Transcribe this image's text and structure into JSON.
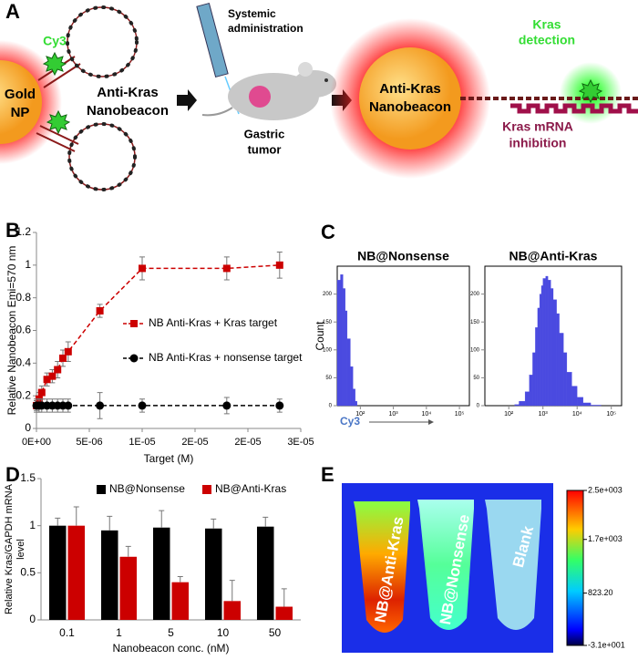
{
  "panel_labels": [
    "A",
    "B",
    "C",
    "D",
    "E"
  ],
  "panel_a": {
    "np_core": [
      "Gold",
      "NP"
    ],
    "dye": "Cy3",
    "probe": [
      "Anti-Kras",
      "Nanobeacon"
    ],
    "route": [
      "Systemic",
      "administration"
    ],
    "tumor": [
      "Gastric",
      "tumor"
    ],
    "particle": [
      "Anti-Kras",
      "Nanobeacon"
    ],
    "detection": [
      "Kras",
      "detection"
    ],
    "inhibition": [
      "Kras mRNA",
      "inhibition"
    ]
  },
  "chart_data": [
    {
      "type": "line",
      "ylabel": "Relative Nanobeacon Emi=570 nm",
      "xlabel": "Target (M)",
      "xlim": [
        0,
        2.5e-05
      ],
      "xticks": [
        {
          "value": 0,
          "label": "0E+00"
        },
        {
          "value": 5e-06,
          "label": "5E-06"
        },
        {
          "value": 1e-05,
          "label": "1E-05"
        },
        {
          "value": 1.5e-05,
          "label": "2E-05"
        },
        {
          "value": 2e-05,
          "label": "2E-05"
        },
        {
          "value": 2.5e-05,
          "label": "3E-05"
        }
      ],
      "ylim": [
        0,
        1.2
      ],
      "yticks": [
        0,
        0.2,
        0.4,
        0.6,
        0.8,
        1,
        1.2
      ],
      "legend": "center",
      "series": [
        {
          "name": "NB Anti-Kras + Kras target",
          "color": "#cc0000",
          "marker": "square",
          "x": [
            0,
            2.5e-07,
            5e-07,
            1e-06,
            1.5e-06,
            2e-06,
            2.5e-06,
            3e-06,
            6e-06,
            1e-05,
            1.8e-05,
            2.3e-05
          ],
          "values": [
            0.14,
            0.18,
            0.22,
            0.3,
            0.32,
            0.36,
            0.43,
            0.47,
            0.72,
            0.98,
            0.98,
            1.0
          ],
          "errors": [
            0.03,
            0.04,
            0.04,
            0.04,
            0.04,
            0.05,
            0.05,
            0.06,
            0.04,
            0.07,
            0.07,
            0.08
          ]
        },
        {
          "name": "NB Anti-Kras + nonsense target",
          "color": "#000000",
          "marker": "circle",
          "x": [
            0,
            2.5e-07,
            5e-07,
            1e-06,
            1.5e-06,
            2e-06,
            2.5e-06,
            3e-06,
            6e-06,
            1e-05,
            1.8e-05,
            2.3e-05
          ],
          "values": [
            0.14,
            0.14,
            0.14,
            0.14,
            0.14,
            0.14,
            0.14,
            0.14,
            0.14,
            0.14,
            0.14,
            0.14
          ],
          "errors": [
            0.04,
            0.04,
            0.04,
            0.04,
            0.04,
            0.04,
            0.04,
            0.04,
            0.08,
            0.04,
            0.05,
            0.04
          ]
        }
      ]
    },
    {
      "type": "histogram",
      "title": "NB@Nonsense",
      "ylabel": "Count",
      "xlabel": "Cy3",
      "x_log": true,
      "xlim": [
        20,
        200000
      ],
      "xticks": [
        {
          "value": 100,
          "label": "10²"
        },
        {
          "value": 1000,
          "label": "10³"
        },
        {
          "value": 10000,
          "label": "10⁴"
        },
        {
          "value": 100000,
          "label": "10⁵"
        }
      ],
      "ylim": [
        0,
        250
      ],
      "yticks": [
        0,
        50,
        100,
        150,
        200
      ],
      "color": "#4a4ae0",
      "bins": [
        20,
        25,
        30,
        35,
        40,
        50,
        60,
        70,
        80
      ],
      "values": [
        225,
        235,
        210,
        170,
        120,
        70,
        30,
        8
      ]
    },
    {
      "type": "histogram",
      "title": "NB@Anti-Kras",
      "x_log": true,
      "xlim": [
        20,
        200000
      ],
      "xticks": [
        {
          "value": 100,
          "label": "10²"
        },
        {
          "value": 1000,
          "label": "10³"
        },
        {
          "value": 10000,
          "label": "10⁴"
        },
        {
          "value": 100000,
          "label": "10⁵"
        }
      ],
      "ylim": [
        0,
        250
      ],
      "yticks": [
        0,
        50,
        100,
        150,
        200
      ],
      "color": "#4a4ae0",
      "bins": [
        150,
        200,
        300,
        400,
        500,
        600,
        700,
        800,
        900,
        1000,
        1200,
        1400,
        1700,
        2000,
        2500,
        3000,
        4000,
        5000,
        7000,
        10000,
        15000,
        25000,
        50000
      ],
      "values": [
        2,
        8,
        25,
        55,
        95,
        140,
        175,
        200,
        215,
        228,
        232,
        225,
        210,
        190,
        165,
        130,
        95,
        60,
        35,
        15,
        5,
        1
      ]
    },
    {
      "type": "bar",
      "ylabel": [
        "Relative Kras/GAPDH mRNA",
        "level"
      ],
      "xlabel": "Nanobeacon conc. (nM)",
      "categories": [
        "0.1",
        "1",
        "5",
        "10",
        "50"
      ],
      "ylim": [
        0,
        1.5
      ],
      "yticks": [
        0,
        0.5,
        1,
        1.5
      ],
      "legend": "top",
      "series": [
        {
          "name": "NB@Nonsense",
          "color": "#000000",
          "values": [
            1,
            0.95,
            0.98,
            0.97,
            0.99
          ],
          "errors": [
            0.08,
            0.15,
            0.18,
            0.1,
            0.1
          ]
        },
        {
          "name": "NB@Anti-Kras",
          "color": "#cc0000",
          "values": [
            1,
            0.67,
            0.4,
            0.2,
            0.14
          ],
          "errors": [
            0.2,
            0.11,
            0.06,
            0.22,
            0.19
          ]
        }
      ]
    }
  ],
  "panel_e": {
    "tubes": [
      "NB@Anti-Kras",
      "NB@Nonsense",
      "Blank"
    ],
    "colorbar_lim": [
      -31,
      2500
    ],
    "colorbar_ticks": [
      {
        "value": 2500,
        "label": "2.5e+003"
      },
      {
        "value": 1700,
        "label": "1.7e+003"
      },
      {
        "value": 823.2,
        "label": "823.20"
      },
      {
        "value": -31,
        "label": "-3.1e+001"
      }
    ]
  }
}
